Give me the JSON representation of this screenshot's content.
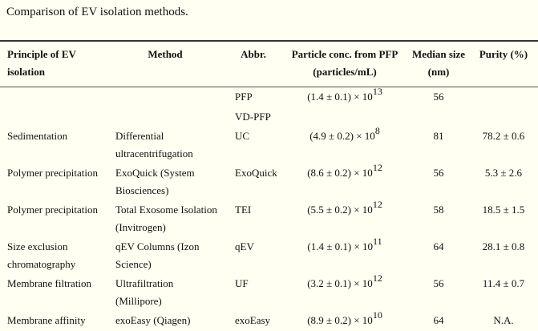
{
  "caption": "Comparison of EV isolation methods.",
  "table": {
    "headers": {
      "principle": "Principle of EV isolation",
      "method": "Method",
      "abbr": "Abbr.",
      "conc": "Particle conc. from PFP (particles/mL)",
      "size": "Median size (nm)",
      "purity": "Purity (%)"
    },
    "rows": [
      {
        "principle": "",
        "method": "",
        "abbr": "PFP",
        "conc_base": "(1.4 ± 0.1) × 10",
        "conc_exp": "13",
        "size": "56",
        "purity": ""
      },
      {
        "principle": "",
        "method": "",
        "abbr": "VD-PFP",
        "conc_base": "",
        "conc_exp": "",
        "size": "",
        "purity": ""
      },
      {
        "principle": "Sedimentation",
        "method": "Differential ultracentrifugation",
        "abbr": "UC",
        "conc_base": "(4.9 ± 0.2) × 10",
        "conc_exp": "8",
        "size": "81",
        "purity": "78.2 ± 0.6"
      },
      {
        "principle": "Polymer precipitation",
        "method": "ExoQuick (System Biosciences)",
        "abbr": "ExoQuick",
        "conc_base": "(8.6 ± 0.2) × 10",
        "conc_exp": "12",
        "size": "56",
        "purity": "5.3 ± 2.6"
      },
      {
        "principle": "Polymer precipitation",
        "method": "Total Exosome Isolation (Invitrogen)",
        "abbr": "TEI",
        "conc_base": "(5.5 ± 0.2) × 10",
        "conc_exp": "12",
        "size": "58",
        "purity": "18.5 ± 1.5"
      },
      {
        "principle": "Size exclusion chromatography",
        "method": "qEV Columns (Izon Science)",
        "abbr": "qEV",
        "conc_base": "(1.4 ± 0.1) × 10",
        "conc_exp": "11",
        "size": "64",
        "purity": "28.1 ± 0.8"
      },
      {
        "principle": "Membrane filtration",
        "method": "Ultrafiltration (Millipore)",
        "abbr": "UF",
        "conc_base": "(3.2 ± 0.1) × 10",
        "conc_exp": "12",
        "size": "56",
        "purity": "11.4 ± 0.7"
      },
      {
        "principle": "Membrane affinity",
        "method": "exoEasy (Qiagen)",
        "abbr": "exoEasy",
        "conc_base": "(8.9 ± 0.2) × 10",
        "conc_exp": "10",
        "size": "64",
        "purity": "N.A."
      }
    ]
  }
}
